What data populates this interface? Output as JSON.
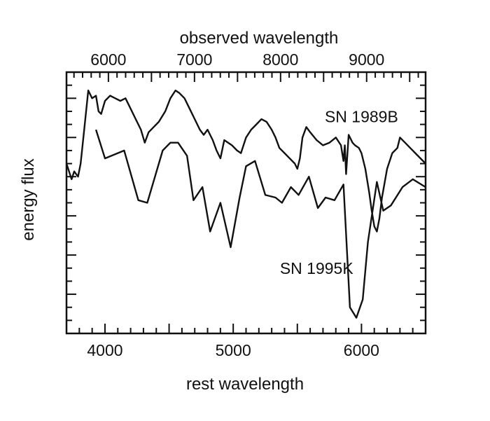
{
  "chart_data": {
    "type": "line",
    "title": "",
    "xlabel": "rest wavelength",
    "ylabel": "energy flux",
    "x2label": "observed wavelength",
    "xlim": [
      3700,
      6500
    ],
    "ylim": [
      0,
      10
    ],
    "x_ticks": [
      4000,
      5000,
      6000
    ],
    "x_tick_labels": [
      "4000",
      "5000",
      "6000"
    ],
    "x2_ticks": [
      6000,
      7000,
      8000,
      9000
    ],
    "x2_tick_labels": [
      "6000",
      "7000",
      "8000",
      "9000"
    ],
    "x2_scale": 1.49,
    "grid": false,
    "series": [
      {
        "name": "SN 1989B",
        "x": [
          3700,
          3740,
          3760,
          3790,
          3810,
          3840,
          3870,
          3900,
          3930,
          3950,
          3970,
          4000,
          4040,
          4080,
          4120,
          4160,
          4200,
          4240,
          4280,
          4310,
          4340,
          4380,
          4420,
          4470,
          4510,
          4550,
          4580,
          4620,
          4660,
          4700,
          4740,
          4770,
          4800,
          4840,
          4870,
          4900,
          4930,
          4960,
          4990,
          5030,
          5060,
          5100,
          5140,
          5180,
          5220,
          5260,
          5300,
          5330,
          5360,
          5400,
          5440,
          5480,
          5500,
          5520,
          5540,
          5570,
          5600,
          5650,
          5700,
          5750,
          5800,
          5840,
          5860,
          5870,
          5880,
          5900,
          5930,
          5950,
          5980,
          6000,
          6030,
          6060,
          6080,
          6100,
          6120,
          6140,
          6160,
          6200,
          6240,
          6280,
          6300,
          6340,
          6380,
          6420,
          6460,
          6500
        ],
        "y": [
          6.5,
          5.9,
          6.2,
          6.0,
          6.5,
          7.9,
          9.3,
          9.0,
          9.1,
          8.5,
          8.4,
          8.9,
          9.1,
          9.0,
          8.9,
          9.0,
          8.6,
          8.2,
          7.8,
          7.3,
          7.7,
          7.9,
          8.1,
          8.5,
          9.0,
          9.3,
          9.2,
          9.0,
          8.6,
          8.2,
          7.8,
          7.6,
          7.8,
          7.4,
          7.0,
          6.7,
          7.4,
          7.3,
          7.2,
          7.0,
          6.9,
          7.5,
          7.8,
          8.0,
          8.2,
          8.1,
          7.8,
          7.5,
          7.1,
          6.9,
          6.7,
          6.5,
          6.3,
          6.7,
          7.5,
          7.9,
          7.7,
          7.4,
          7.2,
          7.3,
          7.5,
          7.2,
          6.6,
          7.2,
          6.1,
          7.6,
          7.3,
          7.2,
          7.1,
          6.9,
          6.3,
          5.4,
          4.7,
          4.1,
          3.9,
          4.4,
          5.2,
          6.3,
          6.9,
          7.1,
          7.5,
          7.3,
          7.1,
          6.9,
          6.7,
          6.5
        ]
      },
      {
        "name": "SN 1995K",
        "x": [
          3930,
          4000,
          4150,
          4260,
          4330,
          4450,
          4510,
          4570,
          4640,
          4690,
          4760,
          4820,
          4900,
          4980,
          5050,
          5100,
          5170,
          5250,
          5330,
          5380,
          5450,
          5510,
          5590,
          5660,
          5720,
          5790,
          5860,
          5910,
          5960,
          6010,
          6050,
          6120,
          6170,
          6230,
          6320,
          6400,
          6500
        ],
        "y": [
          7.8,
          6.7,
          7.0,
          5.1,
          5.0,
          7.0,
          7.3,
          7.3,
          6.8,
          5.1,
          5.6,
          3.9,
          5.0,
          3.3,
          5.2,
          6.4,
          6.6,
          5.3,
          5.2,
          5.0,
          5.6,
          5.3,
          6.0,
          4.8,
          5.2,
          5.1,
          5.7,
          1.0,
          0.6,
          1.3,
          3.5,
          5.8,
          4.7,
          4.9,
          5.6,
          5.9,
          5.6
        ]
      }
    ],
    "annotations": [
      {
        "text": "SN 1989B",
        "x": 6000,
        "y": 8.3
      },
      {
        "text": "SN 1995K",
        "x": 5650,
        "y": 2.5
      }
    ]
  }
}
